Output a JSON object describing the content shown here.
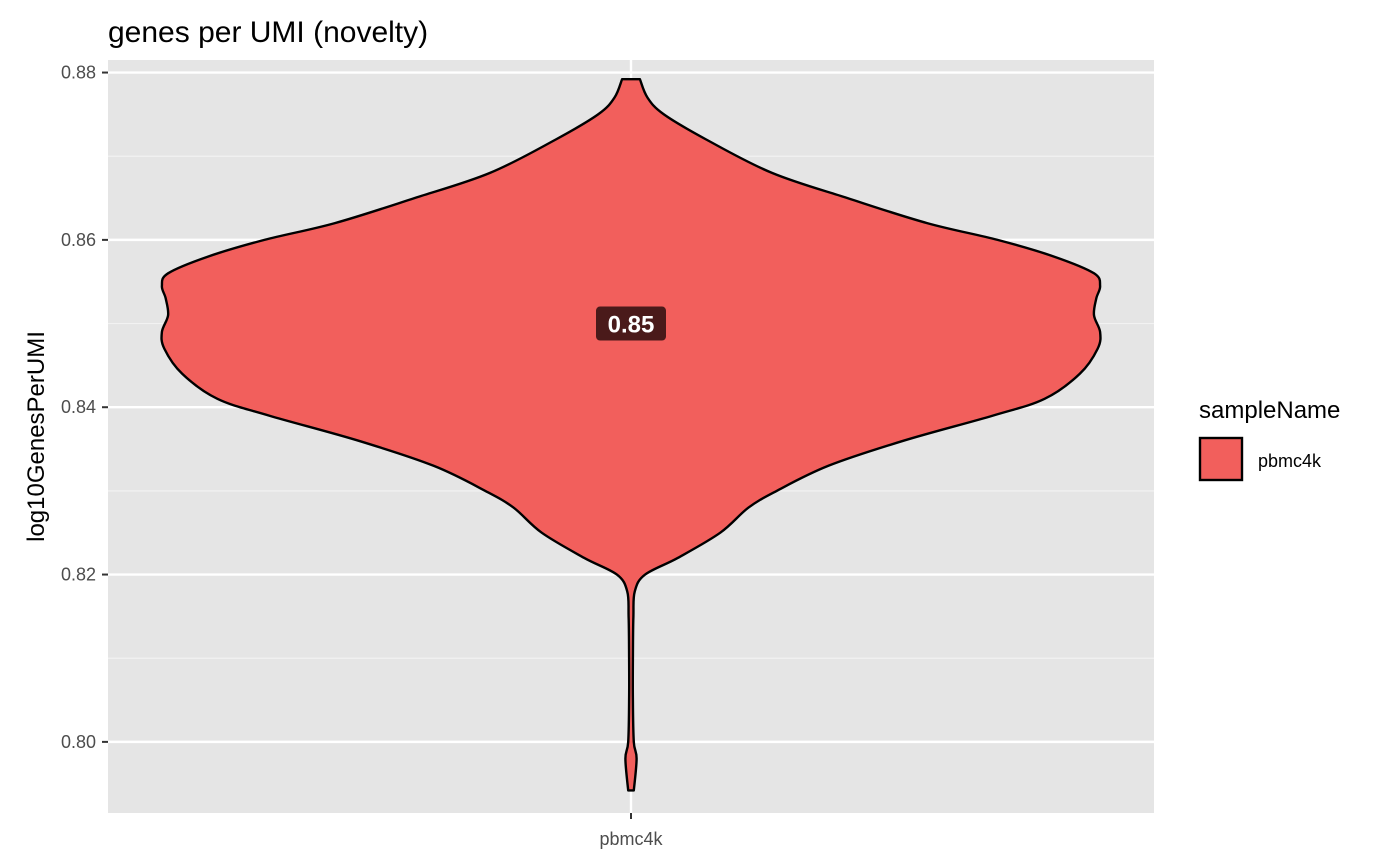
{
  "chart_data": {
    "type": "violin",
    "title": "genes per UMI (novelty)",
    "xlabel": "",
    "ylabel": "log10GenesPerUMI",
    "categories": [
      "pbmc4k"
    ],
    "ylim": [
      0.7915,
      0.8815
    ],
    "y_ticks": [
      0.8,
      0.82,
      0.84,
      0.86,
      0.88
    ],
    "y_tick_labels": [
      "0.80",
      "0.82",
      "0.84",
      "0.86",
      "0.88"
    ],
    "grid": true,
    "legend": {
      "title": "sampleName",
      "position": "right",
      "entries": [
        "pbmc4k"
      ]
    },
    "series": [
      {
        "name": "pbmc4k",
        "color": "#F25F5C",
        "outline": "#000000",
        "min": 0.7942,
        "max": 0.8792,
        "median": 0.85,
        "median_label": "0.85",
        "median_label_bg": "#4A1A1A",
        "density_profile": [
          [
            0.7942,
            0.006
          ],
          [
            0.798,
            0.012
          ],
          [
            0.8,
            0.006
          ],
          [
            0.805,
            0.004
          ],
          [
            0.81,
            0.004
          ],
          [
            0.815,
            0.005
          ],
          [
            0.818,
            0.008
          ],
          [
            0.82,
            0.03
          ],
          [
            0.822,
            0.1
          ],
          [
            0.825,
            0.19
          ],
          [
            0.828,
            0.25
          ],
          [
            0.83,
            0.31
          ],
          [
            0.833,
            0.42
          ],
          [
            0.836,
            0.58
          ],
          [
            0.839,
            0.77
          ],
          [
            0.841,
            0.88
          ],
          [
            0.844,
            0.955
          ],
          [
            0.847,
            0.993
          ],
          [
            0.849,
            0.998
          ],
          [
            0.851,
            0.985
          ],
          [
            0.853,
            0.99
          ],
          [
            0.8545,
            0.998
          ],
          [
            0.856,
            0.985
          ],
          [
            0.858,
            0.9
          ],
          [
            0.86,
            0.78
          ],
          [
            0.862,
            0.63
          ],
          [
            0.865,
            0.46
          ],
          [
            0.868,
            0.3
          ],
          [
            0.872,
            0.16
          ],
          [
            0.875,
            0.07
          ],
          [
            0.877,
            0.035
          ],
          [
            0.8792,
            0.019
          ]
        ]
      }
    ]
  }
}
